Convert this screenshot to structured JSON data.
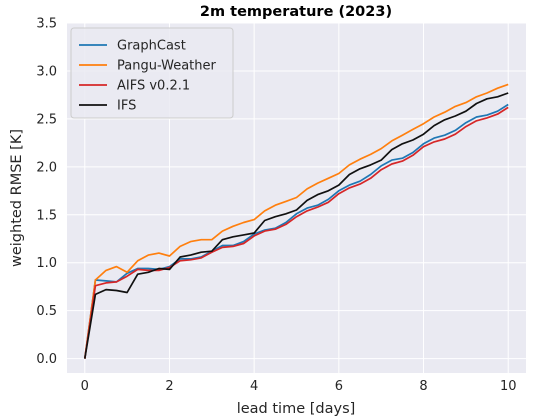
{
  "chart_data": {
    "type": "line",
    "title": "2m temperature (2023)",
    "xlabel": "lead time [days]",
    "ylabel": "weighted RMSE [K]",
    "xlim": [
      -0.42,
      10.42
    ],
    "ylim": [
      -0.15,
      3.5
    ],
    "xticks": [
      0,
      2,
      4,
      6,
      8,
      10
    ],
    "yticks": [
      0.0,
      0.5,
      1.0,
      1.5,
      2.0,
      2.5,
      3.0,
      3.5
    ],
    "grid": true,
    "legend_position": "top-left",
    "x": [
      0,
      0.25,
      0.5,
      0.75,
      1.0,
      1.25,
      1.5,
      1.75,
      2.0,
      2.25,
      2.5,
      2.75,
      3.0,
      3.25,
      3.5,
      3.75,
      4.0,
      4.25,
      4.5,
      4.75,
      5.0,
      5.25,
      5.5,
      5.75,
      6.0,
      6.25,
      6.5,
      6.75,
      7.0,
      7.25,
      7.5,
      7.75,
      8.0,
      8.25,
      8.5,
      8.75,
      9.0,
      9.25,
      9.5,
      9.75,
      10.0
    ],
    "series": [
      {
        "name": "GraphCast",
        "color": "#1f77b4",
        "values": [
          0.0,
          0.82,
          0.81,
          0.8,
          0.89,
          0.94,
          0.94,
          0.93,
          0.96,
          1.04,
          1.04,
          1.06,
          1.12,
          1.18,
          1.18,
          1.22,
          1.3,
          1.34,
          1.36,
          1.42,
          1.51,
          1.57,
          1.6,
          1.66,
          1.75,
          1.81,
          1.85,
          1.92,
          2.01,
          2.07,
          2.09,
          2.15,
          2.24,
          2.3,
          2.33,
          2.38,
          2.46,
          2.52,
          2.54,
          2.58,
          2.65
        ]
      },
      {
        "name": "Pangu-Weather",
        "color": "#ff7f0e",
        "values": [
          0.0,
          0.82,
          0.92,
          0.96,
          0.9,
          1.02,
          1.08,
          1.1,
          1.07,
          1.17,
          1.22,
          1.24,
          1.24,
          1.33,
          1.38,
          1.42,
          1.45,
          1.54,
          1.6,
          1.64,
          1.68,
          1.77,
          1.83,
          1.88,
          1.93,
          2.02,
          2.08,
          2.13,
          2.19,
          2.27,
          2.33,
          2.39,
          2.45,
          2.52,
          2.57,
          2.63,
          2.67,
          2.73,
          2.77,
          2.82,
          2.86
        ]
      },
      {
        "name": "AIFS v0.2.1",
        "color": "#d62728",
        "values": [
          0.0,
          0.76,
          0.79,
          0.8,
          0.86,
          0.93,
          0.92,
          0.92,
          0.95,
          1.02,
          1.03,
          1.05,
          1.11,
          1.16,
          1.17,
          1.2,
          1.28,
          1.33,
          1.35,
          1.4,
          1.48,
          1.54,
          1.58,
          1.63,
          1.72,
          1.78,
          1.82,
          1.88,
          1.97,
          2.03,
          2.06,
          2.12,
          2.21,
          2.26,
          2.29,
          2.34,
          2.42,
          2.48,
          2.51,
          2.55,
          2.62
        ]
      },
      {
        "name": "IFS",
        "color": "#111111",
        "values": [
          0.0,
          0.67,
          0.72,
          0.71,
          0.69,
          0.88,
          0.9,
          0.94,
          0.93,
          1.06,
          1.08,
          1.11,
          1.12,
          1.24,
          1.27,
          1.29,
          1.31,
          1.44,
          1.48,
          1.51,
          1.55,
          1.65,
          1.71,
          1.75,
          1.81,
          1.92,
          1.98,
          2.02,
          2.07,
          2.18,
          2.24,
          2.28,
          2.34,
          2.43,
          2.49,
          2.53,
          2.58,
          2.66,
          2.71,
          2.73,
          2.77
        ]
      }
    ]
  }
}
